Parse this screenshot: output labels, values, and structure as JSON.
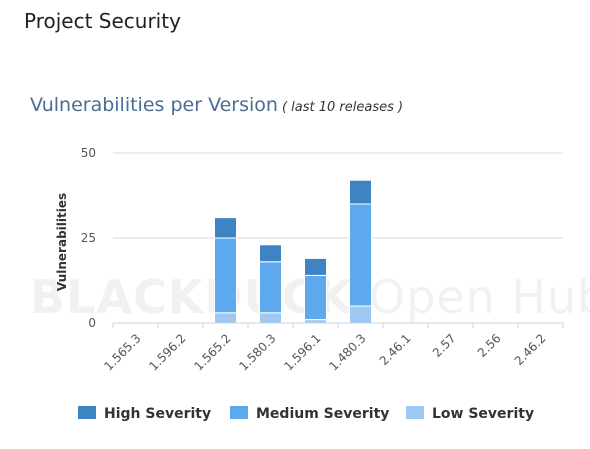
{
  "page": {
    "title": "Project Security",
    "watermark_bold": "BLACKDUCK",
    "watermark_light": "Open Hub"
  },
  "chart_data": {
    "type": "bar",
    "stacked": true,
    "title": "Vulnerabilities per Version",
    "subtitle": "( last 10 releases )",
    "ylabel": "Vulnerabilities",
    "xlabel": "",
    "ylim": [
      0,
      50
    ],
    "yticks": [
      0,
      25,
      50
    ],
    "categories": [
      "1.565.3",
      "1.596.2",
      "1.565.2",
      "1.580.3",
      "1.596.1",
      "1.480.3",
      "2.46.1",
      "2.57",
      "2.56",
      "2.46.2"
    ],
    "series": [
      {
        "name": "Low Severity",
        "color": "#9dc8f3",
        "values": [
          0,
          0,
          3,
          3,
          1,
          5,
          0,
          0,
          0,
          0
        ]
      },
      {
        "name": "Medium Severity",
        "color": "#5ea8ee",
        "values": [
          0,
          0,
          22,
          15,
          13,
          30,
          0,
          0,
          0,
          0
        ]
      },
      {
        "name": "High Severity",
        "color": "#3f84c2",
        "values": [
          0,
          0,
          6,
          5,
          5,
          7,
          0,
          0,
          0,
          0
        ]
      }
    ],
    "legend_order": [
      2,
      1,
      0
    ],
    "grid": true,
    "legend_position": "bottom"
  }
}
